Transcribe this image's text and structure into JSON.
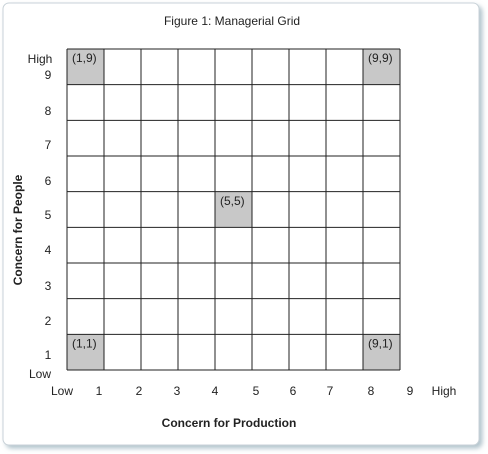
{
  "title": "Figure 1: Managerial Grid",
  "y_axis": {
    "title": "Concern for People",
    "labels": [
      "High",
      "9",
      "8",
      "7",
      "6",
      "5",
      "4",
      "3",
      "2",
      "1",
      "Low"
    ]
  },
  "x_axis": {
    "title": "Concern for Production",
    "labels": [
      "Low",
      "1",
      "2",
      "3",
      "4",
      "5",
      "6",
      "7",
      "8",
      "9",
      "High"
    ]
  },
  "cells": [
    {
      "label": "(1,9)"
    },
    {
      "label": "(9,9)"
    },
    {
      "label": "(5,5)"
    },
    {
      "label": "(1,1)"
    },
    {
      "label": "(9,1)"
    }
  ]
}
